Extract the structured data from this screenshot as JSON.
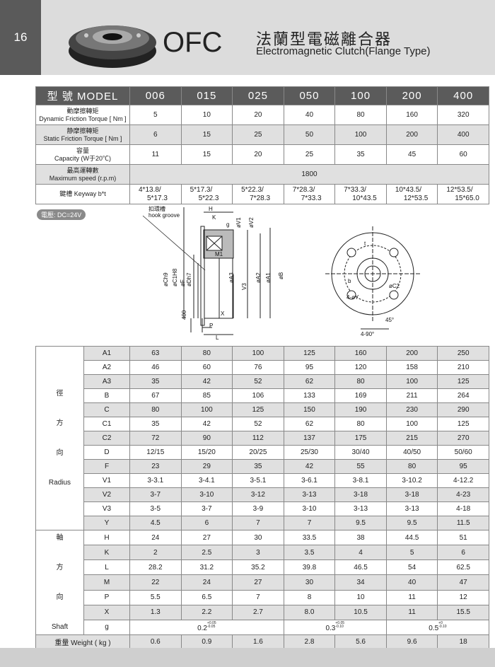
{
  "page_number": "16",
  "header": {
    "model_code": "OFC",
    "title_zh": "法蘭型電磁離合器",
    "title_en": "Electromagnetic Clutch(Flange Type)"
  },
  "spec_table": {
    "model_label": "型 號 MODEL",
    "models": [
      "006",
      "015",
      "025",
      "050",
      "100",
      "200",
      "400"
    ],
    "rows": [
      {
        "label_zh": "動摩擦轉矩",
        "label_en": "Dynamic Friction Torque",
        "unit": "[ Nm ]",
        "values": [
          "5",
          "10",
          "20",
          "40",
          "80",
          "160",
          "320"
        ]
      },
      {
        "label_zh": "静摩擦轉矩",
        "label_en": "Static Friction Torque",
        "unit": "[ Nm ]",
        "values": [
          "6",
          "15",
          "25",
          "50",
          "100",
          "200",
          "400"
        ]
      },
      {
        "label_zh": "容量",
        "label_en": "Capacity",
        "unit": "(W于20℃)",
        "values": [
          "11",
          "15",
          "20",
          "25",
          "35",
          "45",
          "60"
        ]
      }
    ],
    "speed": {
      "label_zh": "最高運轉數",
      "label_en": "Maximum speed",
      "unit": "(r.p.m)",
      "value": "1800"
    },
    "keyway": {
      "label": "鍵槽  Keyway b*t",
      "values": [
        [
          "4*13.8/",
          "5*17.3"
        ],
        [
          "5*17.3/",
          "5*22.3"
        ],
        [
          "5*22.3/",
          "7*28.3"
        ],
        [
          "7*28.3/",
          "7*33.3"
        ],
        [
          "7*33.3/",
          "10*43.5"
        ],
        [
          "10*43.5/",
          "12*53.5"
        ],
        [
          "12*53.5/",
          "15*65.0"
        ]
      ]
    }
  },
  "voltage_badge": "電壓: DC=24V",
  "drawing": {
    "hook_groove_zh": "扣環槽",
    "hook_groove_en": "hook groove",
    "side_labels": [
      "H",
      "K",
      "g",
      "øV1",
      "øV2",
      "M1",
      "øCh9",
      "øC1H8",
      "øF",
      "øDh7",
      "øA3",
      "V3",
      "øA2",
      "øA1",
      "øB",
      "400",
      "X",
      "P",
      "L"
    ],
    "front_labels": [
      "t",
      "b",
      "4-øY",
      "øC2",
      "45°",
      "4-90°"
    ]
  },
  "dims_table": {
    "radial_group": {
      "zh": [
        "徑",
        "方",
        "向"
      ],
      "en": "Radius"
    },
    "shaft_group": {
      "zh": [
        "軸",
        "方",
        "向"
      ],
      "en": "Shaft"
    },
    "radial": [
      {
        "p": "A1",
        "v": [
          "63",
          "80",
          "100",
          "125",
          "160",
          "200",
          "250"
        ]
      },
      {
        "p": "A2",
        "v": [
          "46",
          "60",
          "76",
          "95",
          "120",
          "158",
          "210"
        ]
      },
      {
        "p": "A3",
        "v": [
          "35",
          "42",
          "52",
          "62",
          "80",
          "100",
          "125"
        ]
      },
      {
        "p": "B",
        "v": [
          "67",
          "85",
          "106",
          "133",
          "169",
          "211",
          "264"
        ]
      },
      {
        "p": "C",
        "v": [
          "80",
          "100",
          "125",
          "150",
          "190",
          "230",
          "290"
        ]
      },
      {
        "p": "C1",
        "v": [
          "35",
          "42",
          "52",
          "62",
          "80",
          "100",
          "125"
        ]
      },
      {
        "p": "C2",
        "v": [
          "72",
          "90",
          "112",
          "137",
          "175",
          "215",
          "270"
        ]
      },
      {
        "p": "D",
        "v": [
          "12/15",
          "15/20",
          "20/25",
          "25/30",
          "30/40",
          "40/50",
          "50/60"
        ]
      },
      {
        "p": "F",
        "v": [
          "23",
          "29",
          "35",
          "42",
          "55",
          "80",
          "95"
        ]
      },
      {
        "p": "V1",
        "v": [
          "3-3.1",
          "3-4.1",
          "3-5.1",
          "3-6.1",
          "3-8.1",
          "3-10.2",
          "4-12.2"
        ]
      },
      {
        "p": "V2",
        "v": [
          "3-7",
          "3-10",
          "3-12",
          "3-13",
          "3-18",
          "3-18",
          "4-23"
        ]
      },
      {
        "p": "V3",
        "v": [
          "3-5",
          "3-7",
          "3-9",
          "3-10",
          "3-13",
          "3-13",
          "4-18"
        ]
      },
      {
        "p": "Y",
        "v": [
          "4.5",
          "6",
          "7",
          "7",
          "9.5",
          "9.5",
          "11.5"
        ]
      }
    ],
    "shaft": [
      {
        "p": "H",
        "v": [
          "24",
          "27",
          "30",
          "33.5",
          "38",
          "44.5",
          "51"
        ]
      },
      {
        "p": "K",
        "v": [
          "2",
          "2.5",
          "3",
          "3.5",
          "4",
          "5",
          "6"
        ]
      },
      {
        "p": "L",
        "v": [
          "28.2",
          "31.2",
          "35.2",
          "39.8",
          "46.5",
          "54",
          "62.5"
        ]
      },
      {
        "p": "M",
        "v": [
          "22",
          "24",
          "27",
          "30",
          "34",
          "40",
          "47"
        ]
      },
      {
        "p": "P",
        "v": [
          "5.5",
          "6.5",
          "7",
          "8",
          "10",
          "11",
          "12"
        ]
      },
      {
        "p": "X",
        "v": [
          "1.3",
          "2.2",
          "2.7",
          "8.0",
          "10.5",
          "11",
          "15.5"
        ]
      }
    ],
    "g": {
      "p": "g",
      "groups": [
        {
          "base": "0.2",
          "up": "+0.05",
          "lo": "-0.05"
        },
        {
          "base": "0.3",
          "up": "+0.05",
          "lo": "-0.10"
        },
        {
          "base": "0.5",
          "up": "+0",
          "lo": "-0.10"
        }
      ]
    },
    "weight": {
      "label": "重量  Weight ( kg )",
      "v": [
        "0.6",
        "0.9",
        "1.6",
        "2.8",
        "5.6",
        "9.6",
        "18"
      ]
    }
  }
}
